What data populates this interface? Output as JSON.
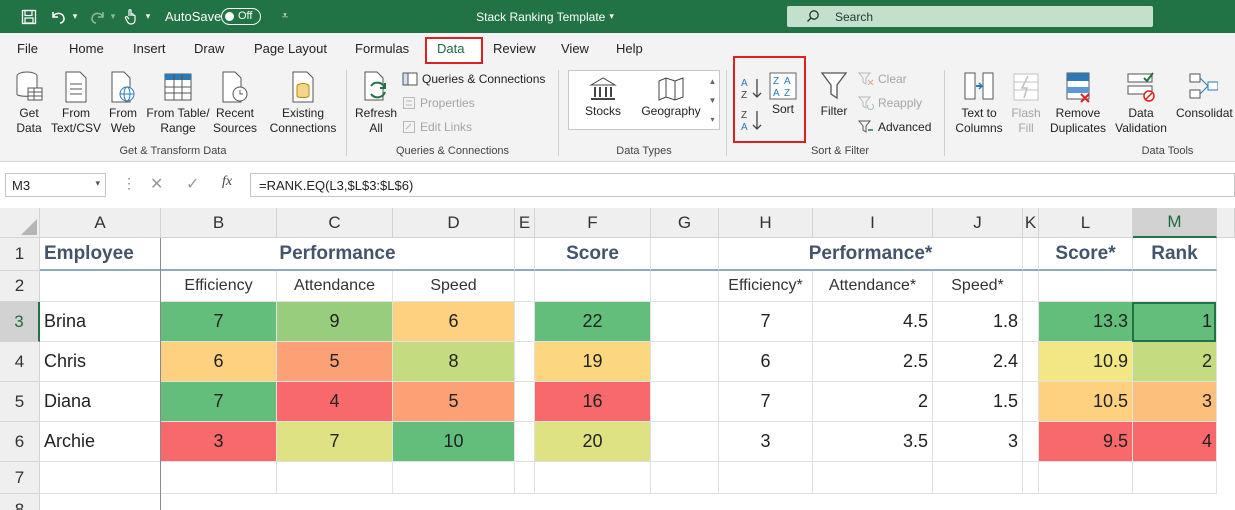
{
  "titlebar": {
    "autosave_label": "AutoSave",
    "autosave_state": "Off",
    "doc_title": "Stack Ranking Template",
    "search_placeholder": "Search"
  },
  "menu": [
    "File",
    "Home",
    "Insert",
    "Draw",
    "Page Layout",
    "Formulas",
    "Data",
    "Review",
    "View",
    "Help"
  ],
  "active_tab": "Data",
  "ribbon": {
    "get_data": "Get\nData",
    "from_text_csv": "From\nText/CSV",
    "from_web": "From\nWeb",
    "from_table_range": "From Table/\nRange",
    "recent_sources": "Recent\nSources",
    "existing_connections": "Existing\nConnections",
    "group_get_transform": "Get & Transform Data",
    "refresh_all": "Refresh\nAll",
    "queries_connections": "Queries & Connections",
    "properties": "Properties",
    "edit_links": "Edit Links",
    "group_queries": "Queries & Connections",
    "stocks": "Stocks",
    "geography": "Geography",
    "group_data_types": "Data Types",
    "sort_az": "A→Z",
    "sort_za": "Z→A",
    "sort": "Sort",
    "filter": "Filter",
    "clear": "Clear",
    "reapply": "Reapply",
    "advanced": "Advanced",
    "group_sort_filter": "Sort & Filter",
    "text_to_columns": "Text to\nColumns",
    "flash_fill": "Flash\nFill",
    "remove_duplicates": "Remove\nDuplicates",
    "data_validation": "Data\nValidation",
    "consolidate": "Consolidat",
    "group_data_tools": "Data Tools"
  },
  "formula_bar": {
    "name_box": "M3",
    "formula": "=RANK.EQ(L3,$L$3:$L$6)"
  },
  "columns": [
    "A",
    "B",
    "C",
    "D",
    "E",
    "F",
    "G",
    "H",
    "I",
    "J",
    "K",
    "L",
    "M"
  ],
  "rows": [
    "1",
    "2",
    "3",
    "4",
    "5",
    "6",
    "7",
    "8"
  ],
  "headers_row1": {
    "employee": "Employee",
    "performance": "Performance",
    "score": "Score",
    "performance_star": "Performance*",
    "score_star": "Score*",
    "rank": "Rank"
  },
  "headers_row2": {
    "efficiency": "Efficiency",
    "attendance": "Attendance",
    "speed": "Speed",
    "efficiency_star": "Efficiency*",
    "attendance_star": "Attendance*",
    "speed_star": "Speed*"
  },
  "table": [
    {
      "name": "Brina",
      "eff": "7",
      "att": "9",
      "spd": "6",
      "score": "22",
      "eff2": "7",
      "att2": "4.5",
      "spd2": "1.8",
      "score2": "13.3",
      "rank": "1"
    },
    {
      "name": "Chris",
      "eff": "6",
      "att": "5",
      "spd": "8",
      "score": "19",
      "eff2": "6",
      "att2": "2.5",
      "spd2": "2.4",
      "score2": "10.9",
      "rank": "2"
    },
    {
      "name": "Diana",
      "eff": "7",
      "att": "4",
      "spd": "5",
      "score": "16",
      "eff2": "7",
      "att2": "2",
      "spd2": "1.5",
      "score2": "10.5",
      "rank": "3"
    },
    {
      "name": "Archie",
      "eff": "3",
      "att": "7",
      "spd": "10",
      "score": "20",
      "eff2": "3",
      "att2": "3.5",
      "spd2": "3",
      "score2": "9.5",
      "rank": "4"
    }
  ],
  "colors": {
    "excel_green": "#217346",
    "highlight_red": "#e02020",
    "green": "#63be7b",
    "light_green": "#98cd7e",
    "yellow_green": "#c4dc7f",
    "yellow": "#fee683",
    "lime_yellow": "#dfe282",
    "orange": "#fdc97d",
    "salmon": "#fca176",
    "red": "#f8696b"
  }
}
